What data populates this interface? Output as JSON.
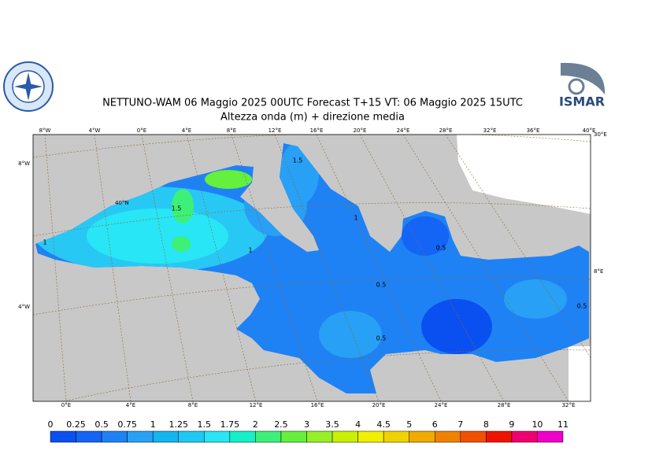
{
  "header": {
    "title": "NETTUNO-WAM  06   Maggio  2025 00UTC Forecast T+15 VT: 06   Maggio  2025 15UTC",
    "subtitle": "Altezza onda (m) + direzione media"
  },
  "logos": {
    "right_text": "ISMAR"
  },
  "map": {
    "top_labels": [
      "8°W",
      "4°W",
      "0°E",
      "4°E",
      "8°E",
      "12°E",
      "16°E",
      "20°E",
      "24°E",
      "28°E",
      "32°E",
      "36°E",
      "40°E"
    ],
    "bottom_labels": [
      "0°E",
      "4°E",
      "8°E",
      "12°E",
      "16°E",
      "20°E",
      "24°E",
      "28°E",
      "32°E"
    ],
    "left_labels": [
      "8°W",
      "4°W"
    ],
    "right_labels": [
      "30°E",
      "8°E"
    ],
    "inner_labels": [
      "40°N"
    ],
    "contour_labels": [
      "1.5",
      "1",
      "1",
      "1",
      "0.5",
      "0.5",
      "0.5",
      "0.5",
      "1.5"
    ]
  },
  "colorbar": {
    "levels": [
      0,
      0.25,
      0.5,
      0.75,
      1,
      1.25,
      1.5,
      1.75,
      2,
      2.5,
      3,
      3.5,
      4,
      4.5,
      5,
      6,
      7,
      8,
      9,
      10,
      11
    ],
    "colors": [
      "#0a50f0",
      "#1464f5",
      "#1e82f5",
      "#28a0f5",
      "#14b4f0",
      "#1ec8f5",
      "#28e6f5",
      "#14f0c8",
      "#3cf078",
      "#64f03c",
      "#96f028",
      "#c8f000",
      "#f0f000",
      "#f0d200",
      "#f0aa00",
      "#f08200",
      "#f05000",
      "#f01400",
      "#f0006e",
      "#f000c8"
    ]
  }
}
